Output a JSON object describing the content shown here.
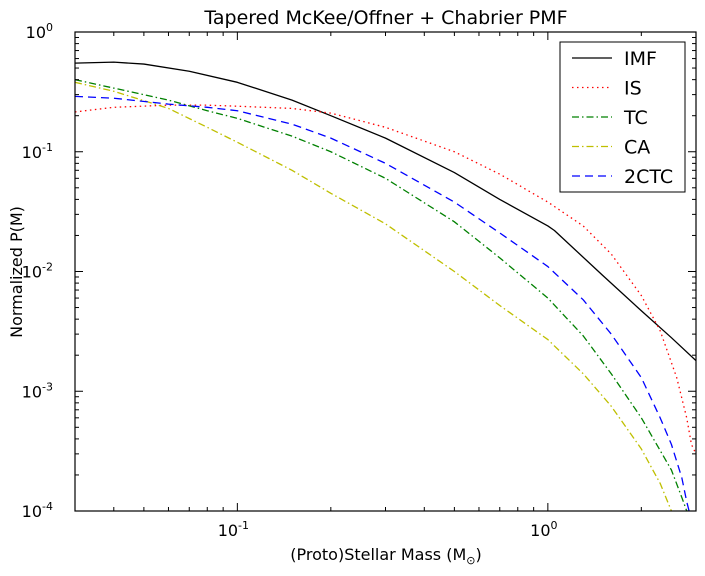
{
  "chart_data": {
    "type": "line",
    "title": "Tapered McKee/Offner + Chabrier PMF",
    "xlabel": "(Proto)Stellar Mass (M",
    "xlabel_sub": "⊙",
    "xlabel_close": ")",
    "ylabel": "Normalized P(M)",
    "xscale": "log",
    "yscale": "log",
    "xlim": [
      0.03,
      3.0
    ],
    "ylim": [
      0.0001,
      1.0
    ],
    "xticks": [
      {
        "value": 0.1,
        "base": "10",
        "exp": "-1"
      },
      {
        "value": 1.0,
        "base": "10",
        "exp": "0"
      }
    ],
    "yticks": [
      {
        "value": 1.0,
        "base": "10",
        "exp": "0"
      },
      {
        "value": 0.1,
        "base": "10",
        "exp": "-1"
      },
      {
        "value": 0.01,
        "base": "10",
        "exp": "-2"
      },
      {
        "value": 0.001,
        "base": "10",
        "exp": "-3"
      },
      {
        "value": 0.0001,
        "base": "10",
        "exp": "-4"
      }
    ],
    "grid": false,
    "legend_position": "top-right",
    "series": [
      {
        "name": "IMF",
        "color": "#000000",
        "dash": "solid",
        "x": [
          0.03,
          0.04,
          0.05,
          0.07,
          0.1,
          0.15,
          0.2,
          0.3,
          0.5,
          0.7,
          1.0,
          1.05,
          1.5,
          2.0,
          2.5,
          3.0
        ],
        "y": [
          0.55,
          0.56,
          0.54,
          0.47,
          0.38,
          0.27,
          0.2,
          0.13,
          0.067,
          0.04,
          0.024,
          0.022,
          0.0093,
          0.0047,
          0.0028,
          0.0018
        ]
      },
      {
        "name": "IS",
        "color": "#ff0000",
        "dash": "dotted",
        "x": [
          0.03,
          0.04,
          0.06,
          0.08,
          0.1,
          0.15,
          0.2,
          0.3,
          0.5,
          0.7,
          1.0,
          1.3,
          1.6,
          2.0,
          2.3,
          2.6,
          2.8,
          2.9,
          3.0
        ],
        "y": [
          0.215,
          0.235,
          0.245,
          0.245,
          0.24,
          0.23,
          0.21,
          0.16,
          0.1,
          0.065,
          0.038,
          0.024,
          0.014,
          0.0063,
          0.0032,
          0.0013,
          0.0006,
          0.00036,
          0.0003
        ]
      },
      {
        "name": "TC",
        "color": "#008000",
        "dash": "dashdot",
        "x": [
          0.03,
          0.04,
          0.06,
          0.08,
          0.1,
          0.15,
          0.2,
          0.3,
          0.5,
          0.7,
          1.0,
          1.3,
          1.6,
          2.0,
          2.3,
          2.5,
          2.7,
          2.8,
          2.85
        ],
        "y": [
          0.4,
          0.34,
          0.27,
          0.22,
          0.19,
          0.135,
          0.1,
          0.06,
          0.026,
          0.013,
          0.006,
          0.0029,
          0.0014,
          0.0006,
          0.00032,
          0.00022,
          0.00013,
          0.0001,
          0.0001
        ]
      },
      {
        "name": "CA",
        "color": "#bfbf00",
        "dash": "dashdot",
        "x": [
          0.03,
          0.04,
          0.06,
          0.08,
          0.1,
          0.15,
          0.2,
          0.3,
          0.5,
          0.7,
          1.0,
          1.3,
          1.6,
          2.0,
          2.3,
          2.5
        ],
        "y": [
          0.38,
          0.32,
          0.23,
          0.16,
          0.12,
          0.07,
          0.045,
          0.025,
          0.01,
          0.0052,
          0.0027,
          0.0014,
          0.00075,
          0.00033,
          0.00017,
          0.0001
        ]
      },
      {
        "name": "2CTC",
        "color": "#0000ff",
        "dash": "dashed",
        "x": [
          0.03,
          0.04,
          0.06,
          0.08,
          0.1,
          0.15,
          0.2,
          0.3,
          0.5,
          0.7,
          1.0,
          1.3,
          1.6,
          2.0,
          2.3,
          2.5,
          2.7,
          2.8,
          2.85
        ],
        "y": [
          0.29,
          0.28,
          0.25,
          0.235,
          0.22,
          0.17,
          0.13,
          0.08,
          0.038,
          0.021,
          0.011,
          0.0058,
          0.003,
          0.0013,
          0.0006,
          0.00036,
          0.00019,
          0.00012,
          0.0001
        ]
      }
    ]
  }
}
